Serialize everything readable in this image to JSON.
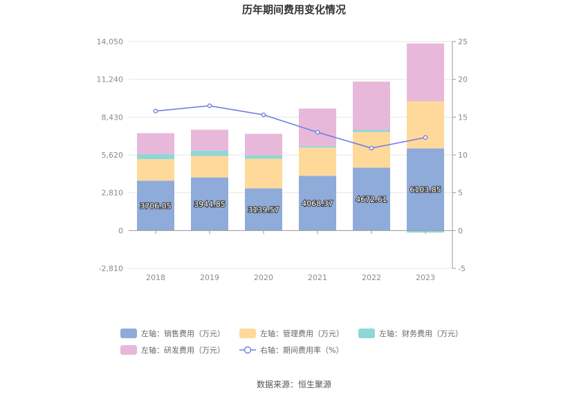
{
  "title": "历年期间费用变化情况",
  "source": "数据来源：恒生聚源",
  "chart_data": {
    "type": "bar",
    "stacked": true,
    "categories": [
      "2018",
      "2019",
      "2020",
      "2021",
      "2022",
      "2023"
    ],
    "left_axis": {
      "ticks": [
        "-2,810",
        "0",
        "2,810",
        "5,620",
        "8,430",
        "11,240",
        "14,050"
      ],
      "min": -2810,
      "max": 14050
    },
    "right_axis": {
      "ticks": [
        "-5",
        "0",
        "5",
        "10",
        "15",
        "20",
        "25"
      ],
      "min": -5,
      "max": 25
    },
    "series": [
      {
        "name": "左轴：销售费用（万元）",
        "axis": "left",
        "color": "#8fabd9",
        "values": [
          3706.05,
          3944.85,
          3139.57,
          4068.37,
          4672.61,
          6103.85
        ],
        "labels": [
          "3706.05",
          "3944.85",
          "3139.57",
          "4068.37",
          "4672.61",
          "6103.85"
        ]
      },
      {
        "name": "左轴：管理费用（万元）",
        "axis": "left",
        "color": "#ffd99a",
        "values": [
          1600,
          1600,
          2200,
          2100,
          2650,
          3500
        ]
      },
      {
        "name": "左轴：财务费用（万元）",
        "axis": "left",
        "color": "#8fd6d6",
        "values": [
          380,
          400,
          250,
          100,
          150,
          -150
        ]
      },
      {
        "name": "左轴：研发费用（万元）",
        "axis": "left",
        "color": "#e8b8da",
        "values": [
          1550,
          1550,
          1600,
          2800,
          3600,
          4300
        ]
      },
      {
        "name": "右轴：期间费用率（%）",
        "axis": "right",
        "type": "line",
        "color": "#6f7fe0",
        "values": [
          15.8,
          16.5,
          15.3,
          13.0,
          10.9,
          12.3
        ]
      }
    ],
    "legend_position": "bottom",
    "grid": true
  }
}
